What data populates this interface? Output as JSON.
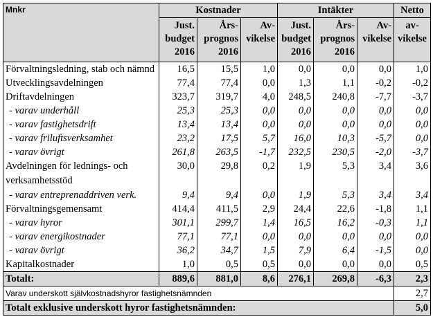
{
  "header": {
    "unit_label": "Mnkr",
    "group_costs": "Kostnader",
    "group_income": "Intäkter",
    "group_net": "Netto",
    "col_budget": [
      "Just.",
      "budget",
      "2016"
    ],
    "col_forecast": [
      "Års-",
      "prognos",
      "2016"
    ],
    "col_deviation": [
      "Av-",
      "vikelse"
    ],
    "col_net": [
      "av-",
      "vikelse"
    ]
  },
  "rows": [
    {
      "label": "Förvaltningsledning, stab och nämnd",
      "values": [
        "16,5",
        "15,5",
        "1,0",
        "0,0",
        "0,0",
        "0,0",
        "1,0"
      ]
    },
    {
      "label": "Utvecklingsavdelningen",
      "values": [
        "77,4",
        "77,4",
        "0,0",
        "1,3",
        "1,1",
        "-0,2",
        "-0,2"
      ]
    },
    {
      "label": "Driftavdelningen",
      "values": [
        "323,7",
        "319,7",
        "4,0",
        "248,5",
        "240,8",
        "-7,7",
        "-3,7"
      ]
    },
    {
      "label": "- varav underhåll",
      "values": [
        "25,3",
        "25,3",
        "0,0",
        "0,0",
        "0,0",
        "0,0",
        "0,0"
      ]
    },
    {
      "label": "- varav fastighetsdrift",
      "values": [
        "13,4",
        "13,4",
        "0,0",
        "0,0",
        "0,0",
        "0,0",
        "0,0"
      ]
    },
    {
      "label": "- varav friluftsverksamhet",
      "values": [
        "23,2",
        "17,5",
        "5,7",
        "16,0",
        "10,3",
        "-5,7",
        "0,0"
      ]
    },
    {
      "label": "- varav övrigt",
      "values": [
        "261,8",
        "263,5",
        "-1,7",
        "232,5",
        "230,5",
        "-2,0",
        "-3,7"
      ]
    },
    {
      "label": "Avdelningen för lednings- och verksamhetsstöd",
      "values": [
        "30,0",
        "29,8",
        "0,2",
        "1,9",
        "5,3",
        "3,4",
        "3,6"
      ]
    },
    {
      "label": "- varav entreprenaddriven verk.",
      "values": [
        "9,4",
        "9,4",
        "0,0",
        "1,9",
        "5,3",
        "3,4",
        "3,4"
      ]
    },
    {
      "label": "Förvaltningsgemensamt",
      "values": [
        "414,4",
        "411,5",
        "2,9",
        "24,4",
        "22,6",
        "-1,8",
        "1,1"
      ]
    },
    {
      "label": "- varav hyror",
      "values": [
        "301,1",
        "299,7",
        "1,4",
        "16,5",
        "16,2",
        "-0,3",
        "1,1"
      ]
    },
    {
      "label": "- varav energikostnader",
      "values": [
        "77,1",
        "77,1",
        "0,0",
        "0,0",
        "0,0",
        "0,0",
        "0,0"
      ]
    },
    {
      "label": "- varav övrigt",
      "values": [
        "36,2",
        "34,7",
        "1,5",
        "7,9",
        "6,4",
        "-1,5",
        "0,0"
      ]
    },
    {
      "label": "Kapitalkostnader",
      "values": [
        "1,0",
        "0,5",
        "0,5",
        "0,0",
        "0,0",
        "0,0",
        "0,5"
      ]
    }
  ],
  "total": {
    "label": "Totalt:",
    "values": [
      "889,6",
      "881,0",
      "8,6",
      "276,1",
      "269,8",
      "-6,3",
      "2,3"
    ]
  },
  "note": {
    "label": "Varav underskott självkostnadshyror fastighetsnämnden",
    "value": "2,7"
  },
  "grand_total": {
    "label": "Totalt exklusive underskott hyror fastighetsnämnden:",
    "value": "5,0"
  }
}
